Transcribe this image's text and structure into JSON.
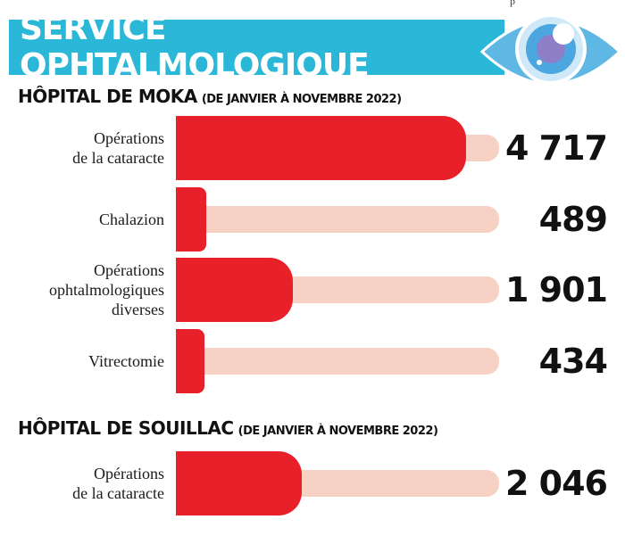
{
  "header": {
    "title": "SERVICE OPHTALMOLOGIQUE",
    "corner_text": "p"
  },
  "colors": {
    "banner": "#2bb8d8",
    "bar": "#e8202a",
    "track": "#f7d1c3",
    "text": "#111111"
  },
  "chart_data": [
    {
      "type": "bar",
      "orientation": "horizontal",
      "title": "HÔPITAL DE MOKA",
      "subtitle": "(DE JANVIER À NOVEMBRE 2022)",
      "categories": [
        "Opérations\nde la cataracte",
        "Chalazion",
        "Opérations\nophtalmologiques\ndiverses",
        "Vitrectomie"
      ],
      "values": [
        4717,
        489,
        1901,
        434
      ],
      "value_labels": [
        "4 717",
        "489",
        "1 901",
        "434"
      ],
      "xlim": [
        0,
        5500
      ]
    },
    {
      "type": "bar",
      "orientation": "horizontal",
      "title": "HÔPITAL DE SOUILLAC",
      "subtitle": "(DE JANVIER À NOVEMBRE 2022)",
      "categories": [
        "Opérations\nde la cataracte"
      ],
      "values": [
        2046
      ],
      "value_labels": [
        "2 046"
      ],
      "xlim": [
        0,
        5500
      ]
    }
  ]
}
